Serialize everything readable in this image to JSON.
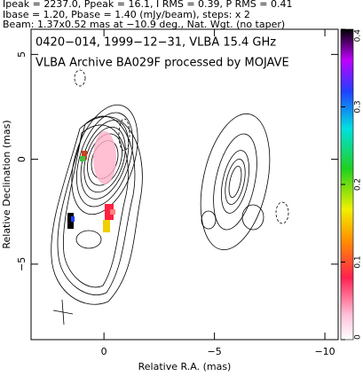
{
  "chart_data": {
    "type": "contour",
    "header": [
      "Ipeak = 2237.0, Ppeak = 16.1, I RMS = 0.39, P RMS = 0.41",
      "Ibase = 1.20, Pbase = 1.40 (mJy/beam), steps: x 2",
      "Beam: 1.37x0.52 mas at −10.9 deg., Nat. Wgt. (no taper)"
    ],
    "title": "0420−014, 1999−12−31, VLBA 15.4 GHz",
    "subtitle": "VLBA Archive BA029F processed by MOJAVE",
    "x_label": "Relative R.A. (mas)",
    "y_label": "Relative Declination (mas)",
    "xlim": [
      3.3,
      -10.6
    ],
    "xticks": [
      0,
      {
        "value": -5,
        "label": "−5"
      },
      {
        "value": -10,
        "label": "−10"
      }
    ],
    "ylim": [
      -8.6,
      6.2
    ],
    "yticks": [
      {
        "value": -5,
        "label": "−5"
      },
      0,
      5
    ],
    "colorbar": {
      "lim": [
        0,
        0.4
      ],
      "ticks": [
        0,
        0.1,
        0.2,
        0.3,
        0.4
      ]
    }
  }
}
